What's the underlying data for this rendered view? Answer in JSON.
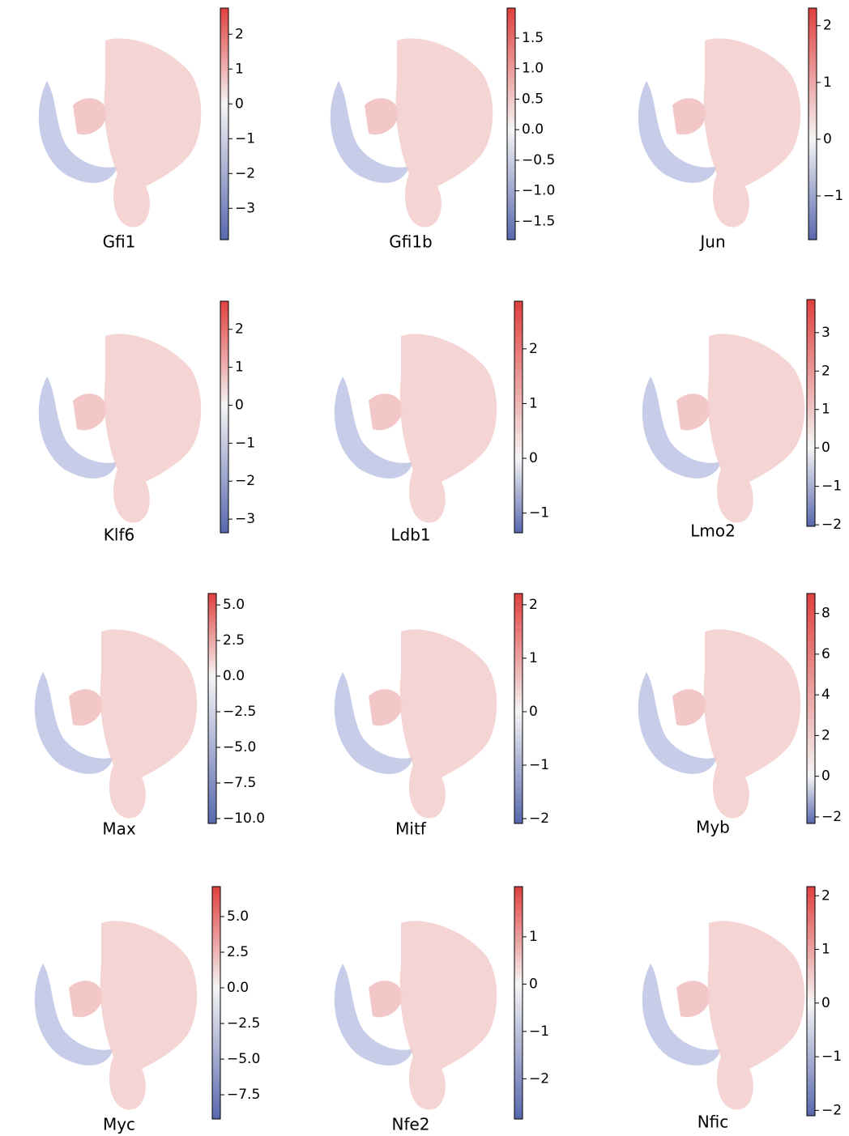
{
  "chart_data": [
    {
      "type": "umap",
      "title": "Gfi1",
      "clim": [
        -3.9,
        2.75
      ],
      "cticks": [
        {
          "value": -3,
          "label": "−3"
        },
        {
          "value": -2,
          "label": "−2"
        },
        {
          "value": -1,
          "label": "−1"
        },
        0,
        1,
        2
      ]
    },
    {
      "type": "umap",
      "title": "Gfi1b",
      "clim": [
        -1.8,
        1.99
      ],
      "cticks": [
        {
          "value": -1.5,
          "label": "−1.5"
        },
        {
          "value": -1.0,
          "label": "−1.0"
        },
        {
          "value": -0.5,
          "label": "−0.5"
        },
        {
          "value": 0,
          "label": "0.0"
        },
        0.5,
        {
          "value": 1,
          "label": "1.0"
        },
        1.5
      ]
    },
    {
      "type": "umap",
      "title": "Jun",
      "clim": [
        -1.77,
        2.31
      ],
      "cticks": [
        {
          "value": -1,
          "label": "−1"
        },
        0,
        1,
        2
      ]
    },
    {
      "type": "umap",
      "title": "Klf6",
      "clim": [
        -3.36,
        2.74
      ],
      "cticks": [
        {
          "value": -3,
          "label": "−3"
        },
        {
          "value": -2,
          "label": "−2"
        },
        {
          "value": -1,
          "label": "−1"
        },
        0,
        1,
        2
      ]
    },
    {
      "type": "umap",
      "title": "Ldb1",
      "clim": [
        -1.36,
        2.87
      ],
      "cticks": [
        {
          "value": -1,
          "label": "−1"
        },
        0,
        1,
        2
      ]
    },
    {
      "type": "umap",
      "title": "Lmo2",
      "clim": [
        -2.04,
        3.86
      ],
      "cticks": [
        {
          "value": -2,
          "label": "−2"
        },
        {
          "value": -1,
          "label": "−1"
        },
        0,
        1,
        2,
        3
      ]
    },
    {
      "type": "umap",
      "title": "Max",
      "clim": [
        -10.34,
        5.8
      ],
      "cticks": [
        {
          "value": -10,
          "label": "−10.0"
        },
        {
          "value": -7.5,
          "label": "−7.5"
        },
        {
          "value": -5,
          "label": "−5.0"
        },
        {
          "value": -2.5,
          "label": "−2.5"
        },
        {
          "value": 0,
          "label": "0.0"
        },
        2.5,
        {
          "value": 5,
          "label": "5.0"
        }
      ]
    },
    {
      "type": "umap",
      "title": "Mitf",
      "clim": [
        -2.09,
        2.21
      ],
      "cticks": [
        {
          "value": -2,
          "label": "−2"
        },
        {
          "value": -1,
          "label": "−1"
        },
        0,
        1,
        2
      ]
    },
    {
      "type": "umap",
      "title": "Myb",
      "clim": [
        -2.32,
        8.98
      ],
      "cticks": [
        {
          "value": -2,
          "label": "−2"
        },
        0,
        2,
        4,
        6,
        8
      ]
    },
    {
      "type": "umap",
      "title": "Myc",
      "clim": [
        -9.2,
        7.1
      ],
      "cticks": [
        {
          "value": -7.5,
          "label": "−7.5"
        },
        {
          "value": -5,
          "label": "−5.0"
        },
        {
          "value": -2.5,
          "label": "−2.5"
        },
        {
          "value": 0,
          "label": "0.0"
        },
        2.5,
        {
          "value": 5,
          "label": "5.0"
        }
      ]
    },
    {
      "type": "umap",
      "title": "Nfe2",
      "clim": [
        -2.85,
        2.06
      ],
      "cticks": [
        {
          "value": -2,
          "label": "−2"
        },
        {
          "value": -1,
          "label": "−1"
        },
        0,
        1
      ]
    },
    {
      "type": "umap",
      "title": "Nfic",
      "clim": [
        -2.1,
        2.17
      ],
      "cticks": [
        {
          "value": -2,
          "label": "−2"
        },
        {
          "value": -1,
          "label": "−1"
        },
        0,
        1,
        2
      ]
    }
  ]
}
